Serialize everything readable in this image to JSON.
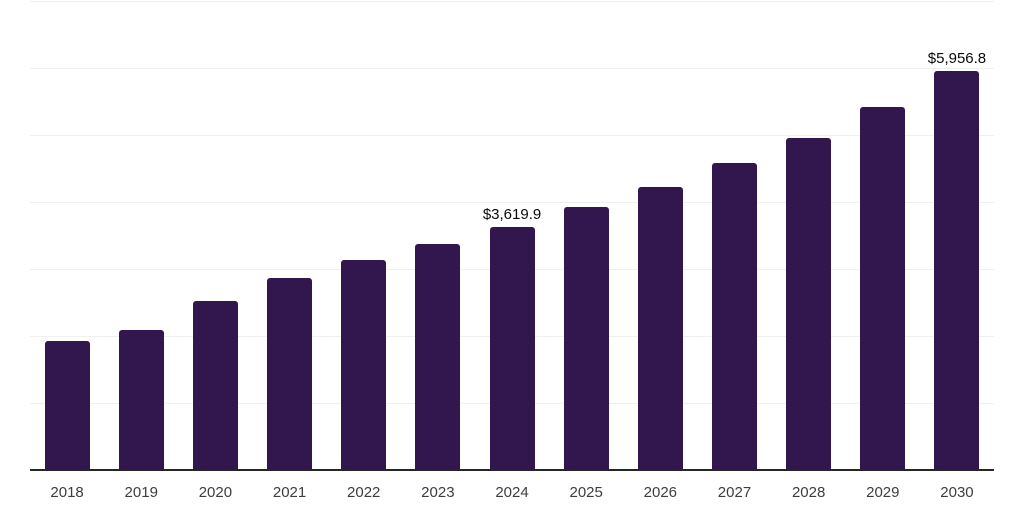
{
  "chart_data": {
    "type": "bar",
    "title": "",
    "xlabel": "",
    "ylabel": "",
    "categories": [
      "2018",
      "2019",
      "2020",
      "2021",
      "2022",
      "2023",
      "2024",
      "2025",
      "2026",
      "2027",
      "2028",
      "2029",
      "2030"
    ],
    "values": [
      1930,
      2090,
      2520,
      2860,
      3130,
      3370,
      3619.9,
      3920,
      4230,
      4580,
      4960,
      5420,
      5956.8
    ],
    "data_labels": {
      "2024": "$3,619.9",
      "2030": "$5,956.8"
    },
    "ylim": [
      0,
      7000
    ],
    "gridline_interval": 1000,
    "grid": "horizontal-only",
    "y_tick_labels_visible": false,
    "legend": "none"
  },
  "style": {
    "bar_color": "#32164E",
    "gridline_color": "#f0f0f0",
    "axis_line_color": "#262626",
    "value_label_color": "#0a0a0a",
    "tick_label_color": "#3d3d3d",
    "background_color": "#ffffff"
  }
}
